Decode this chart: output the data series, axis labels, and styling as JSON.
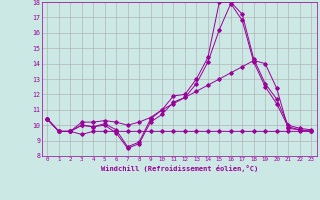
{
  "xlabel": "Windchill (Refroidissement éolien,°C)",
  "background_color": "#cce8e4",
  "grid_color": "#aaaaaa",
  "line_color": "#990099",
  "xlim": [
    -0.5,
    23.5
  ],
  "ylim": [
    8,
    18
  ],
  "x_ticks": [
    0,
    1,
    2,
    3,
    4,
    5,
    6,
    7,
    8,
    9,
    10,
    11,
    12,
    13,
    14,
    15,
    16,
    17,
    18,
    19,
    20,
    21,
    22,
    23
  ],
  "y_ticks": [
    8,
    9,
    10,
    11,
    12,
    13,
    14,
    15,
    16,
    17,
    18
  ],
  "series": [
    [
      10.4,
      9.6,
      9.6,
      10.0,
      9.9,
      10.1,
      9.7,
      8.6,
      8.9,
      10.4,
      11.0,
      11.9,
      12.0,
      13.0,
      14.4,
      18.0,
      18.0,
      17.2,
      14.3,
      12.7,
      11.7,
      10.0,
      9.8,
      9.7
    ],
    [
      10.4,
      9.6,
      9.6,
      10.0,
      9.9,
      10.0,
      9.5,
      8.5,
      8.8,
      10.2,
      10.7,
      11.5,
      11.8,
      12.7,
      14.1,
      16.2,
      17.9,
      16.8,
      14.1,
      12.5,
      11.4,
      9.9,
      9.7,
      9.6
    ],
    [
      10.4,
      9.6,
      9.6,
      10.2,
      10.2,
      10.3,
      10.2,
      10.0,
      10.2,
      10.5,
      11.0,
      11.4,
      11.8,
      12.2,
      12.6,
      13.0,
      13.4,
      13.8,
      14.2,
      14.0,
      12.4,
      9.8,
      9.7,
      9.6
    ],
    [
      10.4,
      9.6,
      9.6,
      9.4,
      9.6,
      9.6,
      9.6,
      9.6,
      9.6,
      9.6,
      9.6,
      9.6,
      9.6,
      9.6,
      9.6,
      9.6,
      9.6,
      9.6,
      9.6,
      9.6,
      9.6,
      9.6,
      9.6,
      9.6
    ]
  ]
}
